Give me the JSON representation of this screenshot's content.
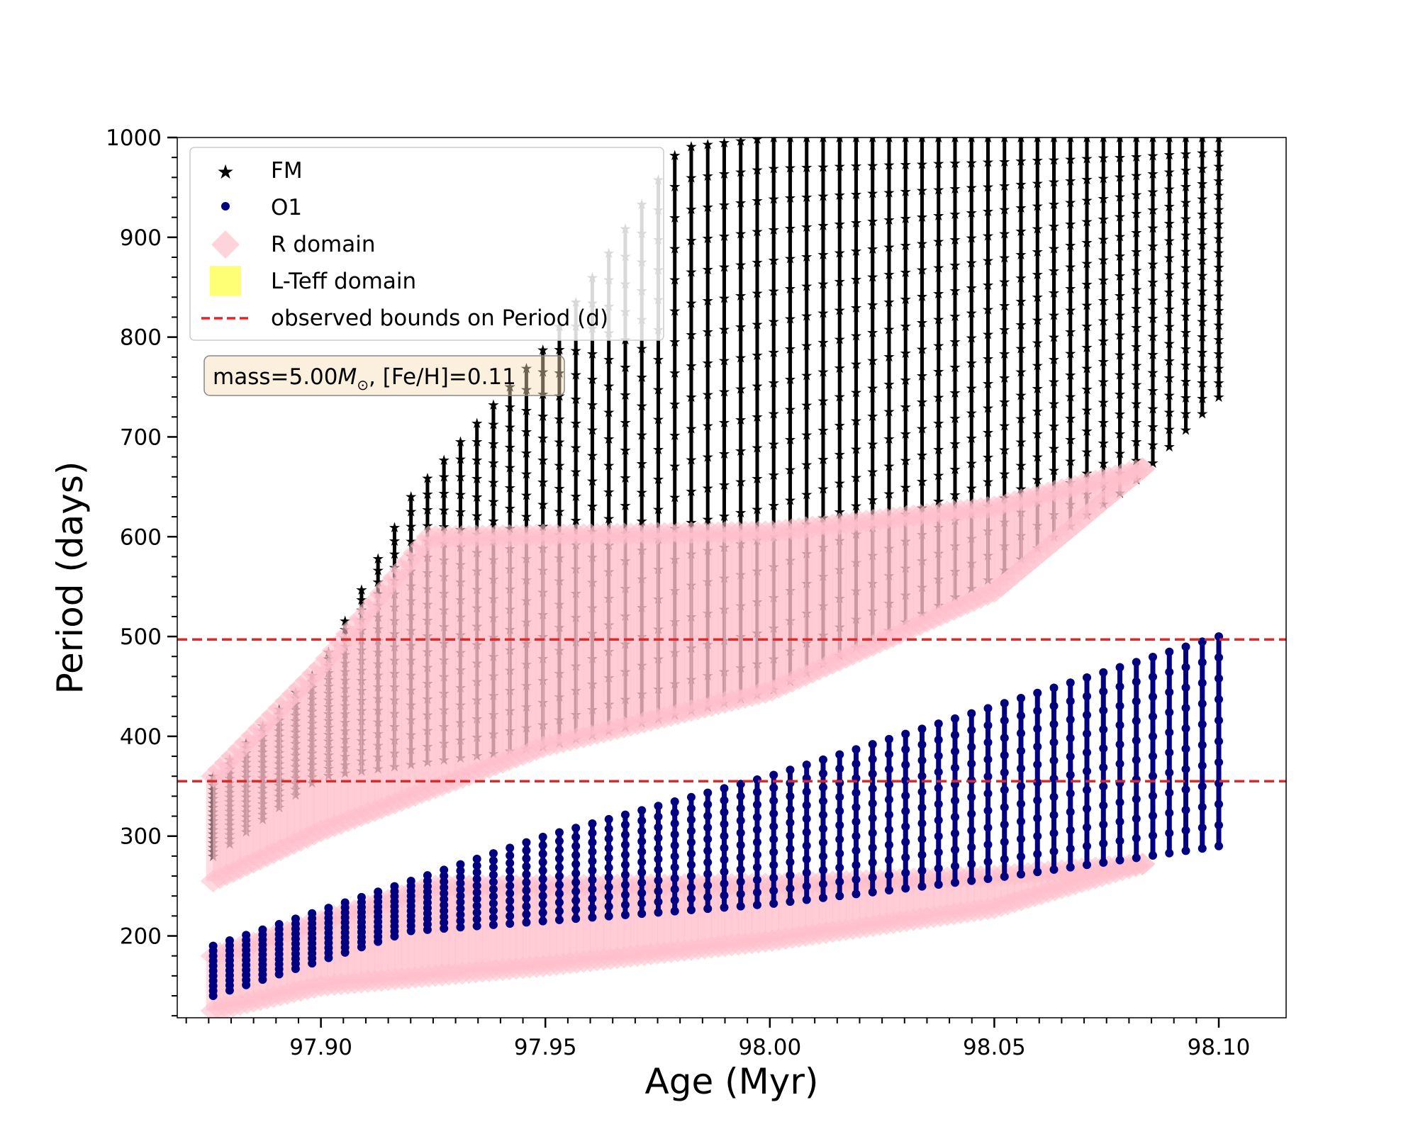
{
  "chart_data": {
    "type": "scatter",
    "title": "",
    "xlabel": "Age (Myr)",
    "ylabel": "Period (days)",
    "xlim": [
      97.868,
      98.115
    ],
    "ylim": [
      118,
      1000
    ],
    "xticks": [
      97.9,
      97.95,
      98.0,
      98.05,
      98.1
    ],
    "xtick_labels": [
      "97.90",
      "97.95",
      "98.00",
      "98.05",
      "98.10"
    ],
    "yticks": [
      200,
      300,
      400,
      500,
      600,
      700,
      800,
      900,
      1000
    ],
    "ytick_labels": [
      "200",
      "300",
      "400",
      "500",
      "600",
      "700",
      "800",
      "900",
      "1000"
    ],
    "legend_position": "upper-left",
    "legend": [
      {
        "key": "fm",
        "label": "FM",
        "color": "#000000",
        "marker": "star"
      },
      {
        "key": "o1",
        "label": "O1",
        "color": "#000080",
        "marker": "circle"
      },
      {
        "key": "r_domain",
        "label": "R domain",
        "color": "#ffc0cb",
        "marker": "diamond"
      },
      {
        "key": "lteff_domain",
        "label": "L-Teff domain",
        "color": "#ffff66",
        "marker": "square"
      },
      {
        "key": "bounds",
        "label": "observed bounds on Period (d)",
        "color": "#ee2222",
        "marker": "dashed-line"
      }
    ],
    "annotation": {
      "prefix": "mass=5.00",
      "symbol": "M",
      "subscript": "⊙",
      "suffix": ", [Fe/H]=0.11"
    },
    "hlines": [
      {
        "y": 497,
        "label": "observed bounds on Period (d)",
        "color": "#ee2222"
      },
      {
        "y": 355,
        "label": "observed bounds on Period (d)",
        "color": "#ee2222"
      }
    ],
    "series": [
      {
        "name": "FM",
        "color": "#000000",
        "x_range": [
          97.876,
          98.1
        ],
        "columns": 62,
        "lower_envelope": [
          [
            97.876,
            280
          ],
          [
            97.9,
            360
          ],
          [
            97.95,
            390
          ],
          [
            98.0,
            445
          ],
          [
            98.05,
            560
          ],
          [
            98.08,
            650
          ],
          [
            98.1,
            740
          ]
        ],
        "upper_envelope": [
          [
            97.876,
            360
          ],
          [
            97.9,
            470
          ],
          [
            97.92,
            640
          ],
          [
            97.95,
            790
          ],
          [
            97.98,
            990
          ],
          [
            98.0,
            1000
          ],
          [
            98.1,
            1000
          ]
        ]
      },
      {
        "name": "O1",
        "color": "#000080",
        "x_range": [
          97.876,
          98.1
        ],
        "columns": 62,
        "lower_envelope": [
          [
            97.876,
            140
          ],
          [
            97.92,
            205
          ],
          [
            97.95,
            215
          ],
          [
            98.0,
            232
          ],
          [
            98.05,
            258
          ],
          [
            98.1,
            290
          ]
        ],
        "upper_envelope": [
          [
            97.876,
            190
          ],
          [
            97.92,
            255
          ],
          [
            97.95,
            300
          ],
          [
            98.0,
            360
          ],
          [
            98.05,
            430
          ],
          [
            98.1,
            500
          ]
        ]
      },
      {
        "name": "R domain",
        "color": "#ffc0cb",
        "bands": [
          {
            "upper": [
              [
                97.876,
                360
              ],
              [
                97.9,
                470
              ],
              [
                97.924,
                600
              ],
              [
                98.0,
                605
              ],
              [
                98.05,
                630
              ],
              [
                98.083,
                668
              ]
            ],
            "lower": [
              [
                97.876,
                255
              ],
              [
                97.9,
                305
              ],
              [
                97.95,
                390
              ],
              [
                98.0,
                445
              ],
              [
                98.05,
                545
              ],
              [
                98.083,
                668
              ]
            ]
          },
          {
            "upper": [
              [
                97.876,
                180
              ],
              [
                97.9,
                215
              ],
              [
                97.925,
                250
              ],
              [
                98.0,
                252
              ],
              [
                98.05,
                260
              ],
              [
                98.083,
                272
              ]
            ],
            "lower": [
              [
                97.876,
                125
              ],
              [
                97.9,
                150
              ],
              [
                97.95,
                170
              ],
              [
                98.0,
                195
              ],
              [
                98.05,
                228
              ],
              [
                98.083,
                272
              ]
            ]
          }
        ]
      }
    ]
  }
}
